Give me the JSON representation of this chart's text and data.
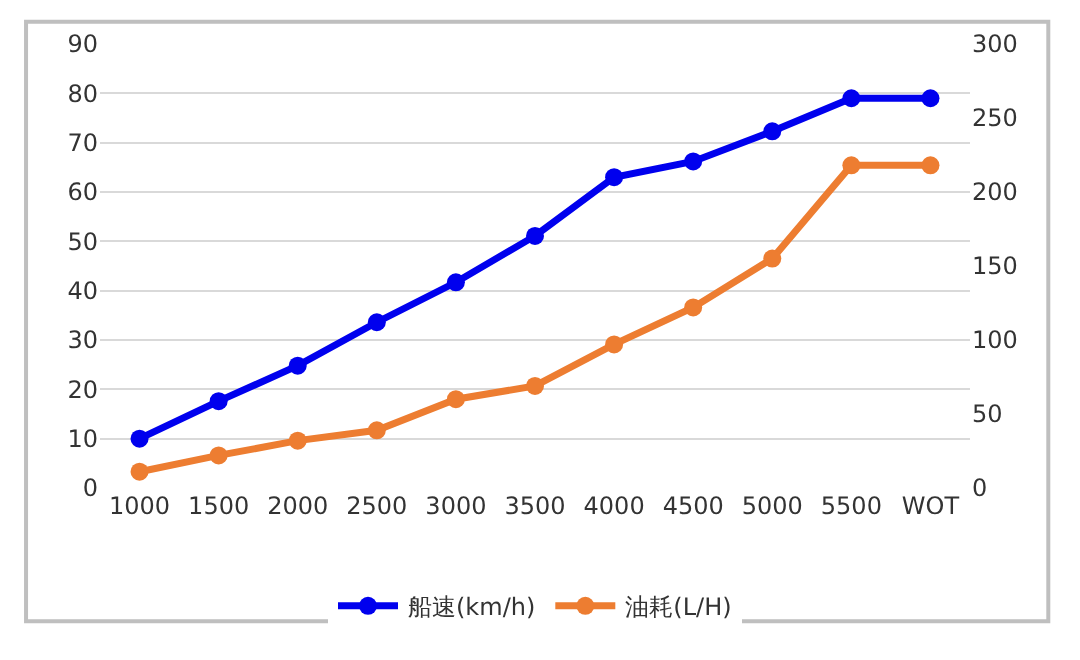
{
  "chart_data": {
    "type": "line",
    "categories": [
      "1000",
      "1500",
      "2000",
      "2500",
      "3000",
      "3500",
      "4000",
      "4500",
      "5000",
      "5500",
      "WOT"
    ],
    "series": [
      {
        "name": "船速(km/h)",
        "color": "#0000ee",
        "values": [
          10,
          17.6,
          24.8,
          33.6,
          41.7,
          51.1,
          63,
          66.2,
          72.3,
          79,
          79
        ]
      },
      {
        "name": "油耗(L/H)",
        "color": "#ed7d31",
        "axis": "y2",
        "values": [
          11,
          22,
          32,
          39,
          60,
          69,
          97,
          122,
          155,
          218,
          218
        ]
      }
    ],
    "ylim": [
      0,
      90
    ],
    "yticks": [
      0,
      10,
      20,
      30,
      40,
      50,
      60,
      70,
      80,
      90
    ],
    "y2lim": [
      0,
      300
    ],
    "y2ticks": [
      0,
      50,
      100,
      150,
      200,
      250,
      300
    ],
    "grid": "y",
    "legend": "bottom",
    "marker": "circle",
    "line_style": "solid"
  }
}
